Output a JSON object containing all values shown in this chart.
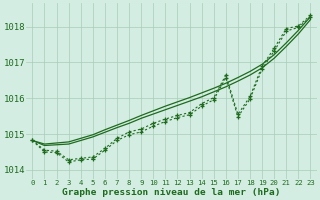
{
  "xlabel": "Graphe pression niveau de la mer (hPa)",
  "x_values": [
    0,
    1,
    2,
    3,
    4,
    5,
    6,
    7,
    8,
    9,
    10,
    11,
    12,
    13,
    14,
    15,
    16,
    17,
    18,
    19,
    20,
    21,
    22,
    23
  ],
  "series_smooth1": [
    1014.82,
    1014.72,
    1014.75,
    1014.78,
    1014.88,
    1014.98,
    1015.12,
    1015.25,
    1015.38,
    1015.52,
    1015.65,
    1015.78,
    1015.9,
    1016.02,
    1016.15,
    1016.28,
    1016.42,
    1016.58,
    1016.75,
    1016.95,
    1017.22,
    1017.55,
    1017.9,
    1018.28
  ],
  "series_smooth2": [
    1014.82,
    1014.68,
    1014.7,
    1014.72,
    1014.82,
    1014.92,
    1015.05,
    1015.18,
    1015.3,
    1015.44,
    1015.56,
    1015.68,
    1015.8,
    1015.92,
    1016.04,
    1016.18,
    1016.32,
    1016.48,
    1016.65,
    1016.85,
    1017.12,
    1017.45,
    1017.8,
    1018.2
  ],
  "series_dotted1": [
    1014.82,
    1014.55,
    1014.52,
    1014.28,
    1014.32,
    1014.36,
    1014.6,
    1014.88,
    1015.06,
    1015.14,
    1015.3,
    1015.42,
    1015.52,
    1015.6,
    1015.85,
    1016.02,
    1016.65,
    1015.55,
    1016.05,
    1016.9,
    1017.4,
    1017.95,
    1018.02,
    1018.32
  ],
  "series_dotted2": [
    1014.82,
    1014.5,
    1014.48,
    1014.22,
    1014.28,
    1014.3,
    1014.55,
    1014.82,
    1014.98,
    1015.06,
    1015.22,
    1015.35,
    1015.46,
    1015.54,
    1015.78,
    1015.96,
    1016.58,
    1015.48,
    1015.98,
    1016.82,
    1017.32,
    1017.88,
    1017.98,
    1018.28
  ],
  "line_color": "#1e6b1e",
  "bg_color": "#d4ede2",
  "grid_color": "#a8ccb8",
  "ylim": [
    1013.75,
    1018.65
  ],
  "yticks": [
    1014,
    1015,
    1016,
    1017,
    1018
  ],
  "xticks": [
    0,
    1,
    2,
    3,
    4,
    5,
    6,
    7,
    8,
    9,
    10,
    11,
    12,
    13,
    14,
    15,
    16,
    17,
    18,
    19,
    20,
    21,
    22,
    23
  ],
  "xlabel_fontsize": 6.8,
  "ytick_fontsize": 6.5,
  "xtick_fontsize": 5.2
}
